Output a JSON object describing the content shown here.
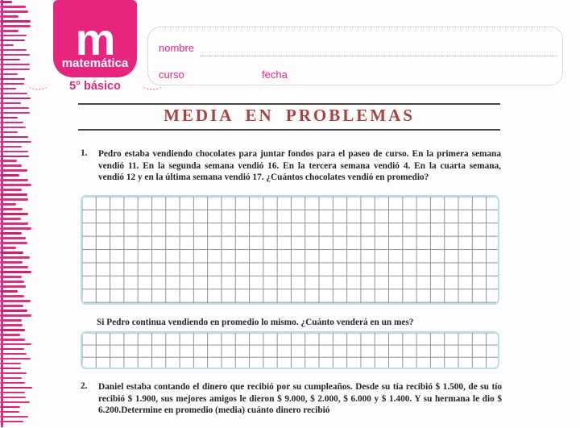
{
  "brand": {
    "letter": "m",
    "subject": "matemática",
    "grade": "5° básico"
  },
  "fields": {
    "name_label": "nombre",
    "course_label": "curso",
    "date_label": "fecha"
  },
  "title": "MEDIA EN PROBLEMAS",
  "problems": [
    {
      "number": "1.",
      "text": "Pedro estaba vendiendo chocolates para juntar fondos para el paseo de curso. En la primera semana vendió 11. En la segunda semana vendió 16. En la tercera semana vendió 4. En la cuarta semana, vendió 12 y en la última semana vendió 17. ¿Cuántos chocolates vendió en promedio?",
      "followup": "Si Pedro continua vendiendo en promedio lo mismo. ¿Cuánto venderá en un mes?"
    },
    {
      "number": "2.",
      "text": "Daniel estaba contando el dinero que recibió por su cumpleaños. Desde su tía recibió $ 1.500, de su tío recibió $ 1.900, sus mejores amigos le dieron $ 9.000, $ 2.000, $ 6.000 y $ 1.400. Y su hermana le dio $ 6.200.Determine en promedio (media) cuánto dinero recibió"
    }
  ],
  "colors": {
    "brand_pink": "#e8257e",
    "fringe_pink": "#d93084",
    "title_red": "#a64444",
    "grid_border_cyan": "#b5e0e4",
    "grid_line_gray": "#909090",
    "dotted_field_gray": "#bfaab2",
    "body_text": "#262626"
  }
}
